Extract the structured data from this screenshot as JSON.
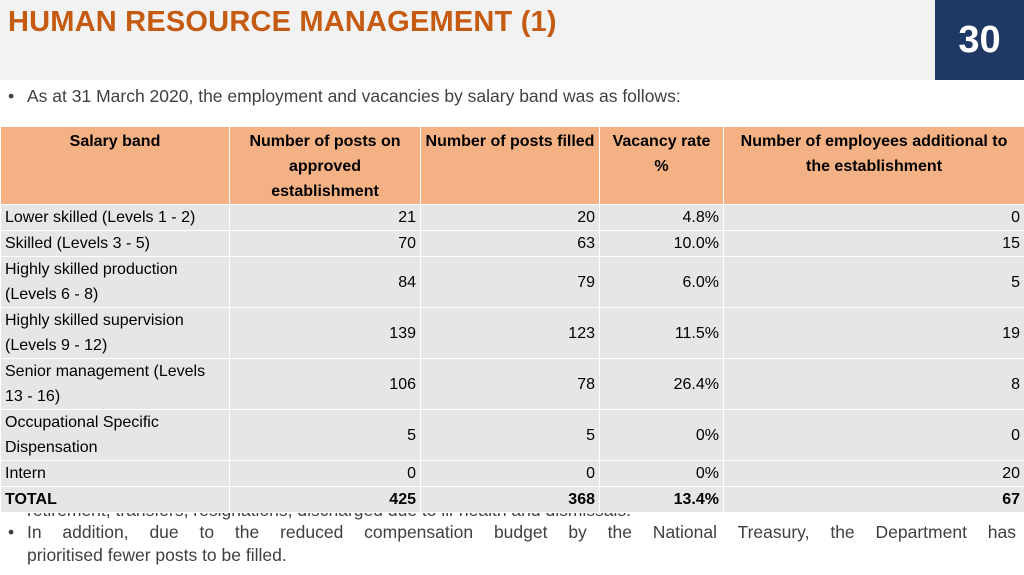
{
  "header": {
    "title": "HUMAN RESOURCE MANAGEMENT (1)",
    "page_number": "30",
    "colors": {
      "title": "#c55a11",
      "page_box": "#1f3864",
      "table_header": "#f4b183",
      "table_body": "#e7e6e6"
    }
  },
  "intro": {
    "bullet": "•",
    "text": "As at 31 March 2020, the employment and vacancies by salary band was as follows:"
  },
  "table": {
    "headers": [
      "Salary band",
      "Number of posts on approved establishment",
      "Number of posts filled",
      "Vacancy rate %",
      "Number of employees additional to the establishment"
    ],
    "rows": [
      {
        "band": "Lower skilled (Levels 1 - 2)",
        "approved": "21",
        "filled": "20",
        "vacancy": "4.8%",
        "additional": "0"
      },
      {
        "band": "Skilled (Levels 3 - 5)",
        "approved": "70",
        "filled": "63",
        "vacancy": "10.0%",
        "additional": "15"
      },
      {
        "band": "Highly skilled production (Levels 6 - 8)",
        "approved": "84",
        "filled": "79",
        "vacancy": "6.0%",
        "additional": "5"
      },
      {
        "band": "Highly skilled supervision (Levels 9 - 12)",
        "approved": "139",
        "filled": "123",
        "vacancy": "11.5%",
        "additional": "19"
      },
      {
        "band": "Senior management (Levels 13 - 16)",
        "approved": "106",
        "filled": "78",
        "vacancy": "26.4%",
        "additional": "8"
      },
      {
        "band": "Occupational Specific Dispensation",
        "approved": "5",
        "filled": "5",
        "vacancy": "0%",
        "additional": "0"
      },
      {
        "band": "Intern",
        "approved": "0",
        "filled": "0",
        "vacancy": "0%",
        "additional": "20"
      }
    ],
    "total": {
      "band": "TOTAL",
      "approved": "425",
      "filled": "368",
      "vacancy": "13.4%",
      "additional": "67"
    }
  },
  "partially_hidden_text": "retirement, transfers,  resignations, discharged due to ill-health and dismissals.",
  "note": {
    "bullet": "•",
    "line1": "In addition, due to the reduced compensation budget by the National Treasury, the Department has",
    "line2": "prioritised fewer posts to be filled."
  }
}
